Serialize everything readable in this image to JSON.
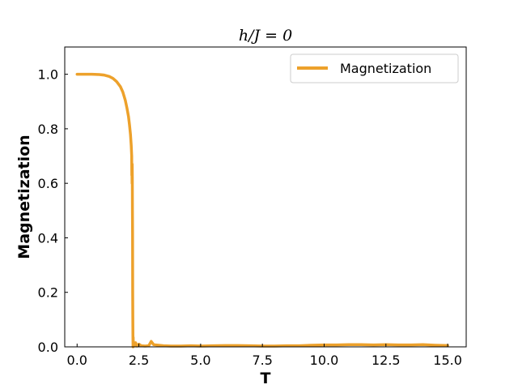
{
  "chart_data": {
    "type": "line",
    "title": "h/J = 0",
    "xlabel": "T",
    "ylabel": "Magnetization",
    "xlim": [
      -0.5,
      15.75
    ],
    "ylim": [
      0.0,
      1.1
    ],
    "xticks": [
      0.0,
      2.5,
      5.0,
      7.5,
      10.0,
      12.5,
      15.0
    ],
    "xtick_labels": [
      "0.0",
      "2.5",
      "5.0",
      "7.5",
      "10.0",
      "12.5",
      "15.0"
    ],
    "yticks": [
      0.0,
      0.2,
      0.4,
      0.6,
      0.8,
      1.0
    ],
    "ytick_labels": [
      "0.0",
      "0.2",
      "0.4",
      "0.6",
      "0.8",
      "1.0"
    ],
    "grid": false,
    "legend_position": "top-right",
    "series": [
      {
        "name": "Magnetization",
        "color": "#eda12b",
        "x": [
          0.0,
          0.3,
          0.6,
          0.9,
          1.1,
          1.3,
          1.45,
          1.6,
          1.75,
          1.85,
          1.95,
          2.02,
          2.08,
          2.12,
          2.16,
          2.19,
          2.21,
          2.215,
          2.22,
          2.225,
          2.23,
          2.235,
          2.24,
          2.245,
          2.25,
          2.255,
          2.26,
          2.265,
          2.27,
          2.275,
          2.28,
          2.29,
          2.3,
          2.33,
          2.37,
          2.42,
          2.5,
          2.6,
          2.75,
          2.9,
          3.0,
          3.1,
          3.3,
          3.5,
          3.8,
          4.2,
          4.6,
          5.0,
          5.5,
          6.0,
          6.5,
          7.0,
          7.5,
          8.0,
          8.5,
          9.0,
          9.5,
          10.0,
          10.5,
          11.0,
          11.5,
          12.0,
          12.5,
          13.0,
          13.5,
          14.0,
          14.5,
          15.0
        ],
        "y": [
          1.0,
          1.0,
          1.0,
          0.999,
          0.997,
          0.992,
          0.985,
          0.973,
          0.955,
          0.935,
          0.905,
          0.875,
          0.845,
          0.815,
          0.78,
          0.74,
          0.7,
          0.63,
          0.66,
          0.6,
          0.67,
          0.62,
          0.5,
          0.42,
          0.2,
          0.11,
          0.04,
          0.0,
          0.035,
          0.01,
          0.02,
          0.005,
          0.012,
          0.004,
          0.015,
          0.003,
          0.01,
          0.004,
          0.003,
          0.004,
          0.02,
          0.008,
          0.006,
          0.004,
          0.003,
          0.003,
          0.004,
          0.003,
          0.004,
          0.005,
          0.005,
          0.004,
          0.003,
          0.003,
          0.004,
          0.004,
          0.006,
          0.007,
          0.007,
          0.008,
          0.008,
          0.007,
          0.008,
          0.007,
          0.007,
          0.008,
          0.006,
          0.005
        ]
      }
    ]
  }
}
